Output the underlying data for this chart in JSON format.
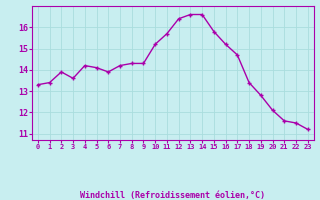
{
  "hours": [
    0,
    1,
    2,
    3,
    4,
    5,
    6,
    7,
    8,
    9,
    10,
    11,
    12,
    13,
    14,
    15,
    16,
    17,
    18,
    19,
    20,
    21,
    22,
    23
  ],
  "values": [
    13.3,
    13.4,
    13.9,
    13.6,
    14.2,
    14.1,
    13.9,
    14.2,
    14.3,
    14.3,
    15.2,
    15.7,
    16.4,
    16.6,
    16.6,
    15.8,
    15.2,
    14.7,
    13.4,
    12.8,
    12.1,
    11.6,
    11.5,
    11.2
  ],
  "line_color": "#aa00aa",
  "marker": "+",
  "bg_color": "#c8eef0",
  "grid_color": "#aadddd",
  "xlabel": "Windchill (Refroidissement éolien,°C)",
  "xlabel_color": "#aa00aa",
  "ylabel_ticks": [
    11,
    12,
    13,
    14,
    15,
    16
  ],
  "ylim": [
    10.7,
    17.0
  ],
  "xlim": [
    -0.5,
    23.5
  ],
  "xtick_labels": [
    "0",
    "1",
    "2",
    "3",
    "4",
    "5",
    "6",
    "7",
    "8",
    "9",
    "10",
    "11",
    "12",
    "13",
    "14",
    "15",
    "16",
    "17",
    "18",
    "19",
    "20",
    "21",
    "22",
    "23"
  ],
  "tick_color": "#aa00aa",
  "spine_color": "#aa00aa",
  "marker_size": 3.5,
  "line_width": 1.0
}
